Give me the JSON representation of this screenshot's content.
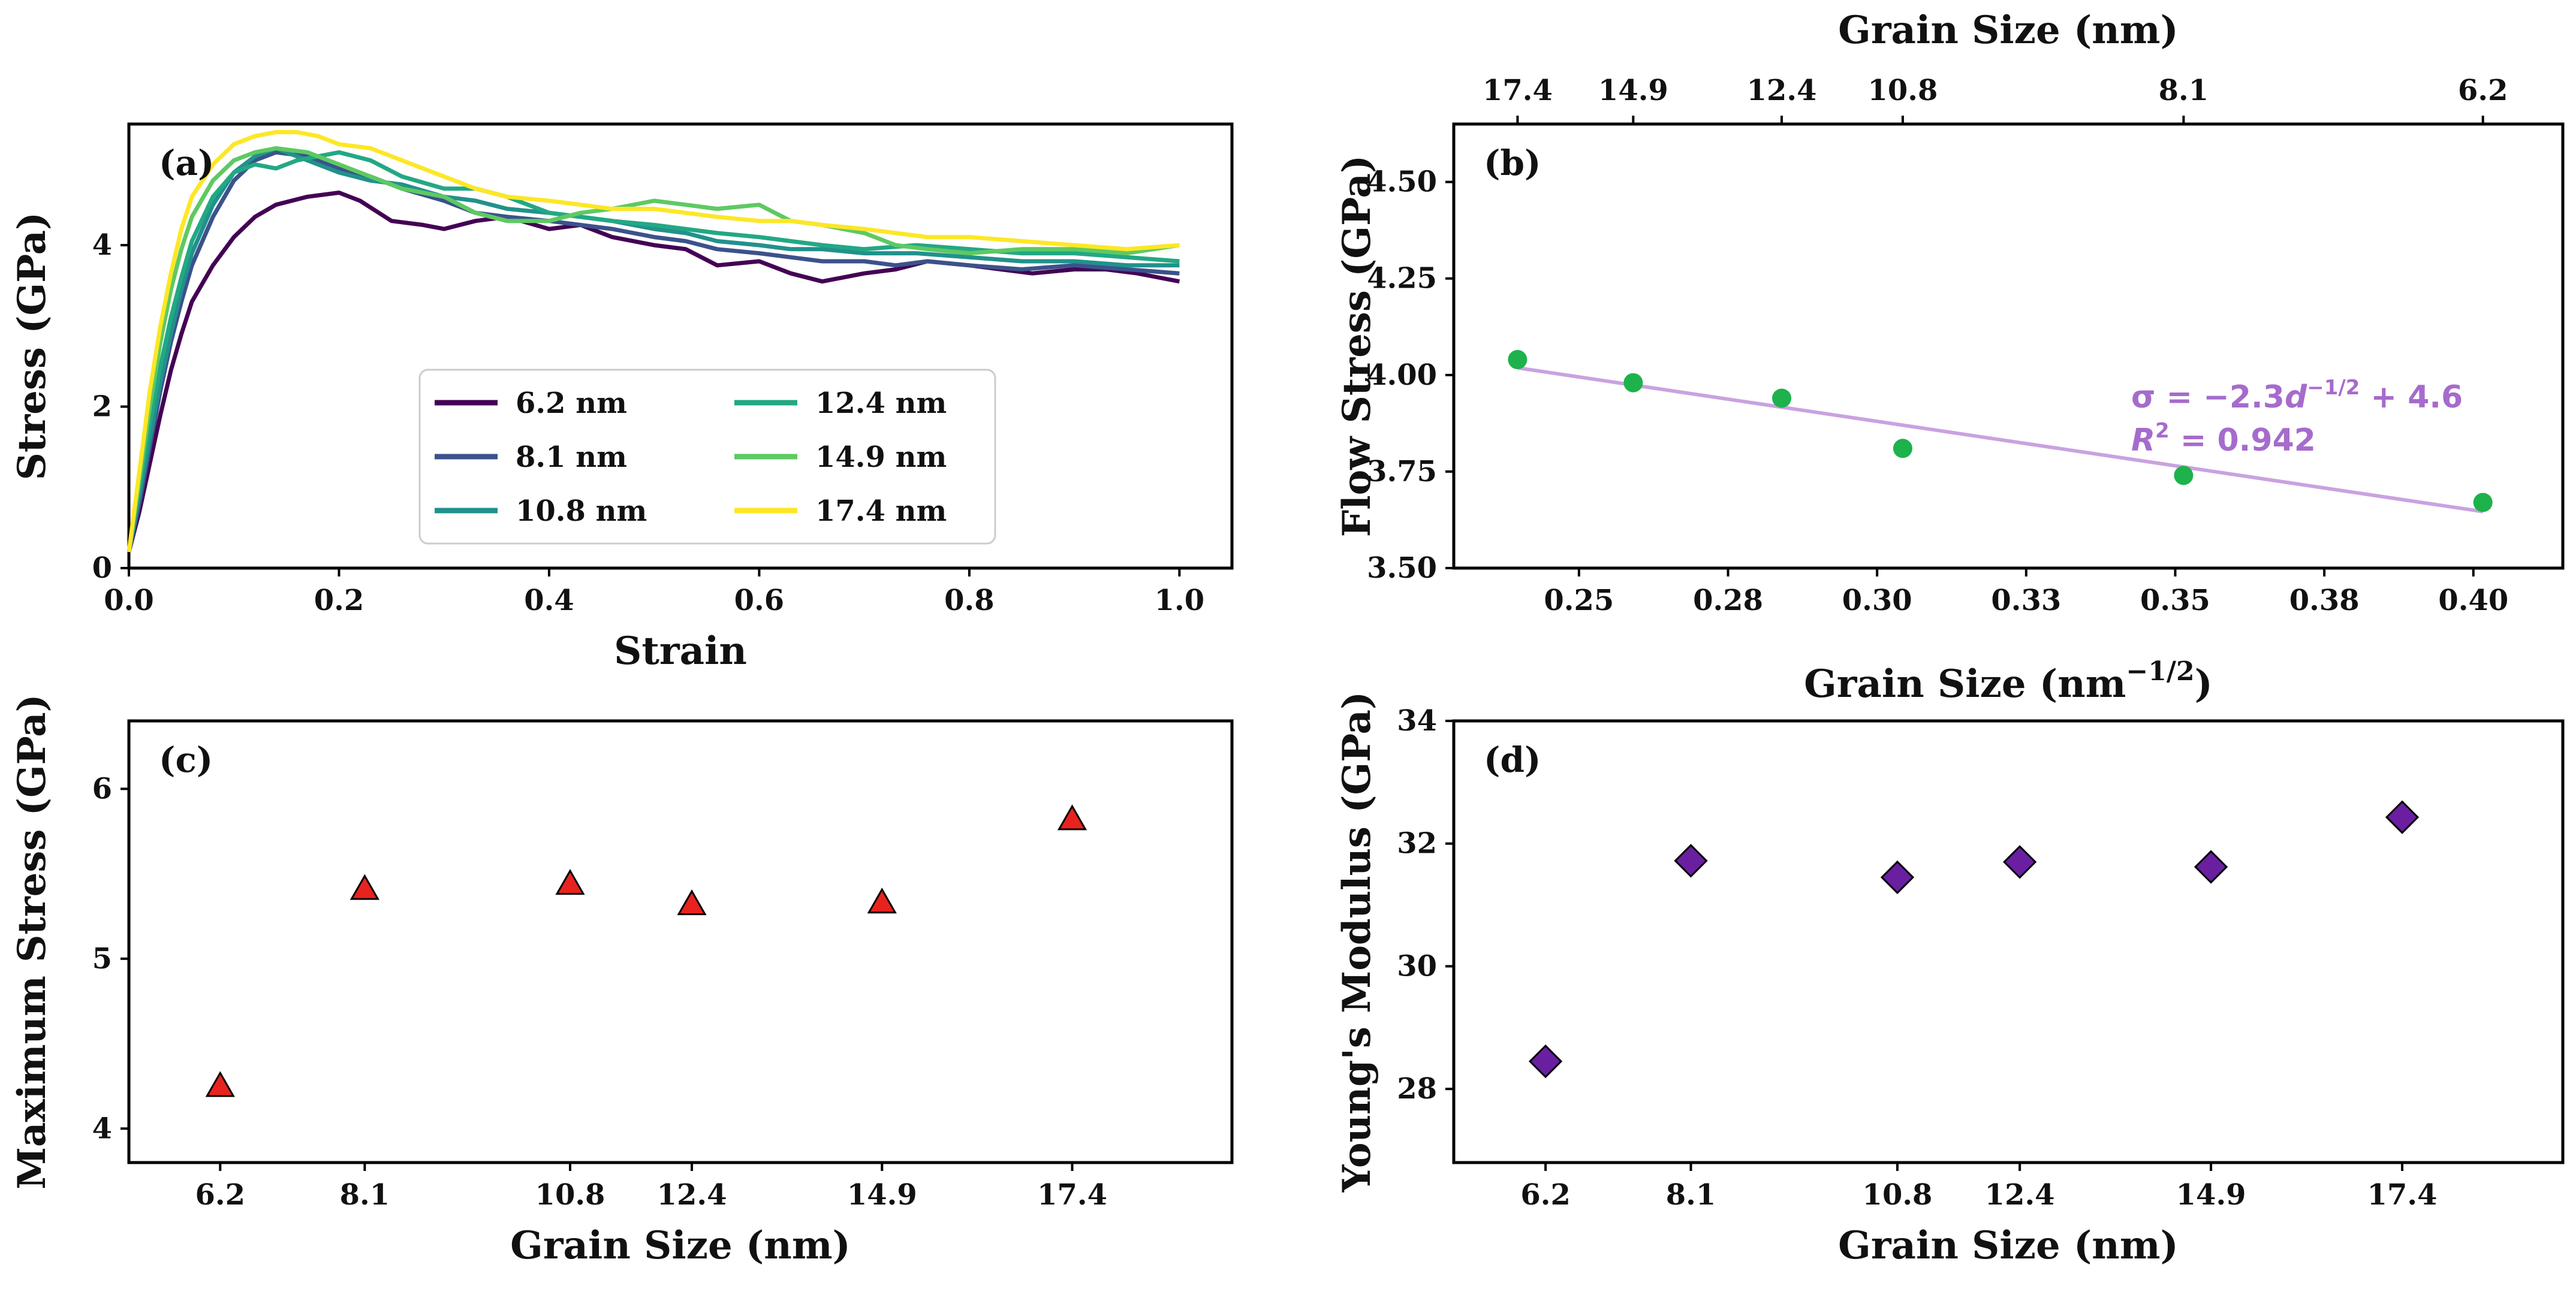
{
  "chart_data": [
    {
      "type": "line",
      "panel": "(a)",
      "xlabel": "Strain",
      "ylabel": "Stress (GPa)",
      "xlim": [
        0.0,
        1.05
      ],
      "ylim": [
        0,
        5.5
      ],
      "xticks": [
        "0.0",
        "0.2",
        "0.4",
        "0.6",
        "0.8",
        "1.0"
      ],
      "yticks": [
        "0",
        "2",
        "4"
      ],
      "legend_position": "center",
      "series": [
        {
          "name": "6.2 nm",
          "color": "#440154",
          "x": [
            0,
            0.01,
            0.02,
            0.03,
            0.04,
            0.05,
            0.06,
            0.08,
            0.1,
            0.12,
            0.14,
            0.17,
            0.2,
            0.22,
            0.25,
            0.28,
            0.3,
            0.33,
            0.36,
            0.4,
            0.43,
            0.46,
            0.5,
            0.53,
            0.56,
            0.6,
            0.63,
            0.66,
            0.7,
            0.73,
            0.76,
            0.8,
            0.83,
            0.86,
            0.9,
            0.93,
            0.96,
            0.98,
            1.0
          ],
          "y": [
            0.2,
            0.7,
            1.3,
            1.9,
            2.45,
            2.9,
            3.3,
            3.75,
            4.1,
            4.35,
            4.5,
            4.6,
            4.65,
            4.55,
            4.3,
            4.25,
            4.2,
            4.3,
            4.35,
            4.2,
            4.25,
            4.1,
            4.0,
            3.95,
            3.75,
            3.8,
            3.65,
            3.55,
            3.65,
            3.7,
            3.8,
            3.75,
            3.7,
            3.65,
            3.7,
            3.7,
            3.65,
            3.6,
            3.55
          ]
        },
        {
          "name": "8.1 nm",
          "color": "#3b528b",
          "x": [
            0,
            0.01,
            0.02,
            0.03,
            0.04,
            0.05,
            0.06,
            0.08,
            0.1,
            0.12,
            0.14,
            0.17,
            0.2,
            0.23,
            0.26,
            0.3,
            0.33,
            0.36,
            0.4,
            0.43,
            0.46,
            0.5,
            0.53,
            0.56,
            0.6,
            0.63,
            0.66,
            0.7,
            0.73,
            0.76,
            0.8,
            0.85,
            0.9,
            0.95,
            1.0
          ],
          "y": [
            0.2,
            0.8,
            1.5,
            2.2,
            2.8,
            3.3,
            3.75,
            4.35,
            4.8,
            5.05,
            5.15,
            5.1,
            4.95,
            4.85,
            4.7,
            4.55,
            4.4,
            4.35,
            4.3,
            4.25,
            4.2,
            4.1,
            4.05,
            3.95,
            3.9,
            3.85,
            3.8,
            3.8,
            3.75,
            3.8,
            3.75,
            3.7,
            3.75,
            3.7,
            3.65
          ]
        },
        {
          "name": "10.8 nm",
          "color": "#21918c",
          "x": [
            0,
            0.01,
            0.02,
            0.03,
            0.04,
            0.05,
            0.06,
            0.08,
            0.1,
            0.12,
            0.14,
            0.17,
            0.2,
            0.23,
            0.26,
            0.3,
            0.33,
            0.36,
            0.4,
            0.43,
            0.46,
            0.5,
            0.53,
            0.56,
            0.6,
            0.63,
            0.66,
            0.7,
            0.75,
            0.8,
            0.85,
            0.9,
            0.95,
            1.0
          ],
          "y": [
            0.2,
            0.9,
            1.6,
            2.3,
            2.9,
            3.45,
            3.9,
            4.5,
            4.9,
            5.1,
            5.2,
            5.05,
            4.9,
            4.8,
            4.75,
            4.6,
            4.55,
            4.45,
            4.4,
            4.35,
            4.3,
            4.2,
            4.15,
            4.05,
            4.0,
            3.95,
            3.95,
            3.9,
            3.9,
            3.85,
            3.8,
            3.8,
            3.75,
            3.75
          ]
        },
        {
          "name": "12.4 nm",
          "color": "#22a884",
          "x": [
            0,
            0.01,
            0.02,
            0.03,
            0.04,
            0.05,
            0.06,
            0.08,
            0.1,
            0.12,
            0.14,
            0.16,
            0.18,
            0.2,
            0.23,
            0.26,
            0.3,
            0.33,
            0.36,
            0.4,
            0.43,
            0.46,
            0.5,
            0.53,
            0.56,
            0.6,
            0.63,
            0.66,
            0.7,
            0.75,
            0.8,
            0.85,
            0.9,
            0.95,
            1.0
          ],
          "y": [
            0.2,
            1.0,
            1.8,
            2.5,
            3.1,
            3.6,
            4.05,
            4.6,
            4.9,
            5.0,
            4.95,
            5.05,
            5.1,
            5.15,
            5.05,
            4.85,
            4.7,
            4.7,
            4.6,
            4.4,
            4.35,
            4.3,
            4.25,
            4.2,
            4.15,
            4.1,
            4.05,
            4.0,
            3.95,
            4.0,
            3.95,
            3.9,
            3.9,
            3.85,
            3.8
          ]
        },
        {
          "name": "14.9 nm",
          "color": "#5ec962",
          "x": [
            0,
            0.01,
            0.02,
            0.03,
            0.04,
            0.05,
            0.06,
            0.08,
            0.1,
            0.12,
            0.14,
            0.17,
            0.2,
            0.23,
            0.26,
            0.3,
            0.33,
            0.36,
            0.4,
            0.43,
            0.46,
            0.5,
            0.53,
            0.56,
            0.6,
            0.63,
            0.66,
            0.7,
            0.73,
            0.76,
            0.8,
            0.85,
            0.9,
            0.95,
            1.0
          ],
          "y": [
            0.2,
            1.1,
            2.0,
            2.8,
            3.45,
            3.95,
            4.35,
            4.8,
            5.05,
            5.15,
            5.2,
            5.15,
            5.0,
            4.85,
            4.7,
            4.6,
            4.4,
            4.3,
            4.3,
            4.4,
            4.45,
            4.55,
            4.5,
            4.45,
            4.5,
            4.3,
            4.25,
            4.15,
            4.0,
            3.95,
            3.9,
            3.95,
            3.95,
            3.9,
            4.0
          ]
        },
        {
          "name": "17.4 nm",
          "color": "#fde725",
          "x": [
            0,
            0.01,
            0.02,
            0.03,
            0.04,
            0.05,
            0.06,
            0.08,
            0.1,
            0.12,
            0.14,
            0.16,
            0.18,
            0.2,
            0.23,
            0.26,
            0.3,
            0.33,
            0.36,
            0.4,
            0.43,
            0.46,
            0.5,
            0.53,
            0.56,
            0.6,
            0.63,
            0.66,
            0.7,
            0.73,
            0.76,
            0.8,
            0.85,
            0.9,
            0.95,
            1.0
          ],
          "y": [
            0.2,
            1.2,
            2.2,
            3.0,
            3.65,
            4.2,
            4.6,
            5.0,
            5.25,
            5.35,
            5.4,
            5.4,
            5.35,
            5.25,
            5.2,
            5.05,
            4.85,
            4.7,
            4.6,
            4.55,
            4.5,
            4.45,
            4.45,
            4.4,
            4.35,
            4.3,
            4.3,
            4.25,
            4.2,
            4.15,
            4.1,
            4.1,
            4.05,
            4.0,
            3.95,
            4.0
          ]
        }
      ]
    },
    {
      "type": "scatter",
      "panel": "(b)",
      "xlabel": "Grain Size (nm",
      "xlabel_sup": "−1/2",
      "xlabel_close": ")",
      "ylabel": "Flow Stress (GPa)",
      "top_xlabel": "Grain Size (nm)",
      "xlim": [
        0.229,
        0.415
      ],
      "ylim": [
        3.5,
        4.65
      ],
      "xticks": [
        0.25,
        0.275,
        0.3,
        0.325,
        0.35,
        0.375,
        0.4
      ],
      "xtick_labels": [
        "0.25",
        "0.28",
        "0.30",
        "0.33",
        "0.35",
        "0.38",
        "0.40"
      ],
      "yticks": [
        3.5,
        3.75,
        4.0,
        4.25,
        4.5
      ],
      "ytick_labels": [
        "3.50",
        "3.75",
        "4.00",
        "4.25",
        "4.50"
      ],
      "top_xticks": [
        0.2397,
        0.2591,
        0.284,
        0.3043,
        0.3514,
        0.4016
      ],
      "top_xtick_labels": [
        "17.4",
        "14.9",
        "12.4",
        "10.8",
        "8.1",
        "6.2"
      ],
      "x": [
        0.2397,
        0.2591,
        0.284,
        0.3043,
        0.3514,
        0.4016
      ],
      "y": [
        4.04,
        3.98,
        3.94,
        3.81,
        3.74,
        3.67
      ],
      "point_color": "#1db24b",
      "fit": {
        "slope": -2.3,
        "intercept": 4.57,
        "x_range": [
          0.2397,
          0.4016
        ],
        "color": "#c9a2e0"
      },
      "equation_color": "#a66bcc",
      "equation": {
        "lhs": "σ = −2.3",
        "d": "d",
        "exp": "−1/2",
        "rhs": " + 4.6"
      },
      "r2": {
        "r": "R",
        "exp": "2",
        "value": " = 0.942"
      }
    },
    {
      "type": "scatter",
      "panel": "(c)",
      "xlabel": "Grain Size (nm)",
      "ylabel": "Maximum Stress (GPa)",
      "xlim": [
        5.0,
        19.5
      ],
      "ylim": [
        3.8,
        6.4
      ],
      "xticks": [
        6.2,
        8.1,
        10.8,
        12.4,
        14.9,
        17.4
      ],
      "xtick_labels": [
        "6.2",
        "8.1",
        "10.8",
        "12.4",
        "14.9",
        "17.4"
      ],
      "yticks": [
        4,
        5,
        6
      ],
      "ytick_labels": [
        "4",
        "5",
        "6"
      ],
      "x": [
        6.2,
        8.1,
        10.8,
        12.4,
        14.9,
        17.4
      ],
      "y": [
        4.25,
        5.41,
        5.44,
        5.32,
        5.33,
        5.82
      ],
      "marker": "triangle",
      "point_color": "#e8231f"
    },
    {
      "type": "scatter",
      "panel": "(d)",
      "xlabel": "Grain Size (nm)",
      "ylabel": "Young's Modulus (GPa)",
      "xlim": [
        5.0,
        19.5
      ],
      "ylim": [
        26.8,
        34.0
      ],
      "xticks": [
        6.2,
        8.1,
        10.8,
        12.4,
        14.9,
        17.4
      ],
      "xtick_labels": [
        "6.2",
        "8.1",
        "10.8",
        "12.4",
        "14.9",
        "17.4"
      ],
      "yticks": [
        28,
        30,
        32,
        34
      ],
      "ytick_labels": [
        "28",
        "30",
        "32",
        "34"
      ],
      "x": [
        6.2,
        8.1,
        10.8,
        12.4,
        14.9,
        17.4
      ],
      "y": [
        28.45,
        31.72,
        31.45,
        31.7,
        31.62,
        32.43
      ],
      "marker": "diamond",
      "point_color": "#6a1fa0"
    }
  ]
}
